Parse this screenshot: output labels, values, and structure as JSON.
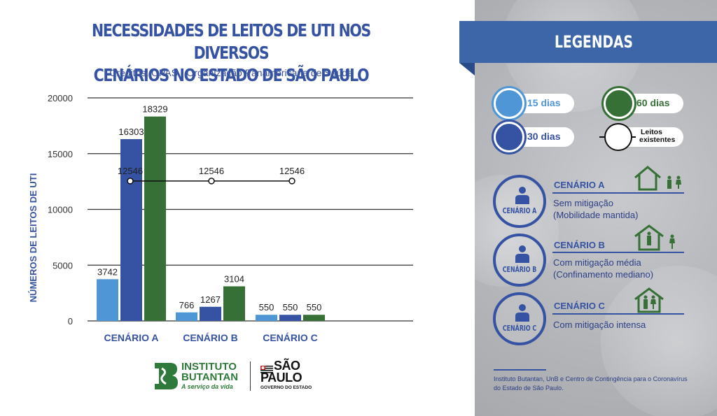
{
  "header": {
    "title_line1": "NECESSIDADES DE LEITOS DE UTI NOS DIVERSOS",
    "title_line2": "CENÁRIOS NO ESTADO DE  SÃO PAULO",
    "subtitle": "Créditos: OPAS - Organização Panamericana de Saúde"
  },
  "chart_data": {
    "type": "bar",
    "title": "NECESSIDADES DE LEITOS DE UTI NOS DIVERSOS CENÁRIOS NO ESTADO DE SÃO PAULO",
    "xlabel": "",
    "ylabel": "NÚMEROS DE LEITOS DE UTI",
    "ylim": [
      0,
      20000
    ],
    "yticks": [
      0,
      5000,
      10000,
      15000,
      20000
    ],
    "ytick_labels": [
      "0",
      "5000",
      "10000",
      "15000",
      "20000"
    ],
    "grid": true,
    "categories": [
      "CENÁRIO A",
      "CENÁRIO B",
      "CENÁRIO C"
    ],
    "series": [
      {
        "name": "15 dias",
        "color": "#4f96d6",
        "values": [
          3742,
          766,
          550
        ]
      },
      {
        "name": "30 dias",
        "color": "#3653a3",
        "values": [
          16303,
          1267,
          550
        ]
      },
      {
        "name": "60 dias",
        "color": "#367036",
        "values": [
          18329,
          3104,
          550
        ]
      }
    ],
    "line_series": {
      "name": "Leitos existentes",
      "type": "line",
      "color": "#111111",
      "values": [
        12546,
        12546,
        12546
      ]
    }
  },
  "logos": {
    "butantan_line1": "INSTITUTO",
    "butantan_line2": "BUTANTAN",
    "butantan_tagline": "A serviço da vida",
    "sp_line1": "SÃO",
    "sp_line2": "PAULO",
    "sp_tagline": "GOVERNO DO ESTADO"
  },
  "legend": {
    "title": "LEGENDAS",
    "items": [
      {
        "label": "15 dias",
        "color": "#4f96d6",
        "icon": "filled-circle"
      },
      {
        "label": "60 dias",
        "color": "#367036",
        "icon": "filled-circle"
      },
      {
        "label": "30 dias",
        "color": "#3653a3",
        "icon": "filled-circle"
      },
      {
        "label_line1": "Leitos",
        "label_line2": "existentes",
        "color": "#111111",
        "icon": "line-with-hollow-circle"
      }
    ]
  },
  "scenarios": [
    {
      "badge": "CENÁRIO A",
      "heading": "CENÁRIO A",
      "desc_line1": "Sem mitigação",
      "desc_line2": "(Mobilidade mantida)",
      "icon": "people-outside-house-icon"
    },
    {
      "badge": "CENÁRIO B",
      "heading": "CENÁRIO B",
      "desc_line1": "Com mitigação média",
      "desc_line2": "(Confinamento mediano)",
      "icon": "person-in-house-icon"
    },
    {
      "badge": "CENÁRIO C",
      "heading": "CENÁRIO C",
      "desc_line1": "Com mitigação intensa",
      "desc_line2": "",
      "icon": "people-in-house-icon"
    }
  ],
  "credit": {
    "line1": "Instituto Butantan, UnB e Centro de Contingência para o Coronavírus",
    "line2": "do Estado de São Paulo."
  }
}
